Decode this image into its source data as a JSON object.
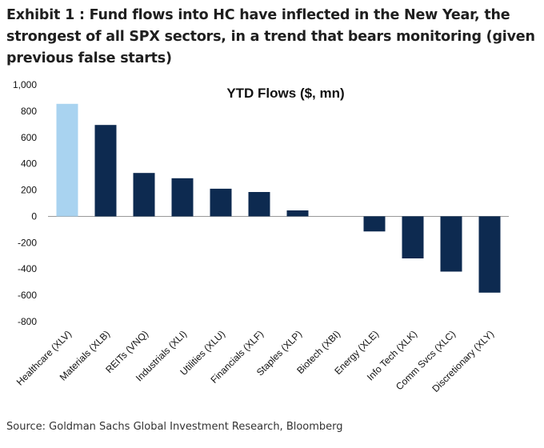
{
  "header": {
    "title": "Exhibit 1 : Fund flows into HC have inflected in the New Year, the strongest of all SPX sectors, in a trend that bears monitoring (given previous false starts)"
  },
  "footer": {
    "source": "Source: Goldman Sachs Global Investment Research, Bloomberg"
  },
  "colors": {
    "highlight": "#a9d3f0",
    "bar": "#0d2a50",
    "axis": "#999999"
  },
  "chart_data": {
    "type": "bar",
    "title": "YTD Flows ($, mn)",
    "categories": [
      "Healthcare (XLV)",
      "Materials (XLB)",
      "REITs (VNQ)",
      "Industrials (XLI)",
      "Utilities (XLU)",
      "Financials (XLF)",
      "Staples (XLP)",
      "Biotech (XBI)",
      "Energy (XLE)",
      "Info Tech (XLK)",
      "Comm Svcs (XLC)",
      "Discretionary (XLY)"
    ],
    "values": [
      855,
      695,
      330,
      290,
      210,
      185,
      45,
      0,
      -115,
      -320,
      -420,
      -580
    ],
    "highlight_category": "Healthcare (XLV)",
    "ylim": [
      -800,
      1000
    ],
    "yticks": [
      1000,
      800,
      600,
      400,
      200,
      0,
      -200,
      -400,
      -600,
      -800
    ],
    "ytick_labels": [
      "1,000",
      "800",
      "600",
      "400",
      "200",
      "0",
      "-200",
      "-400",
      "-600",
      "-800"
    ],
    "grid": false,
    "legend": "none"
  }
}
